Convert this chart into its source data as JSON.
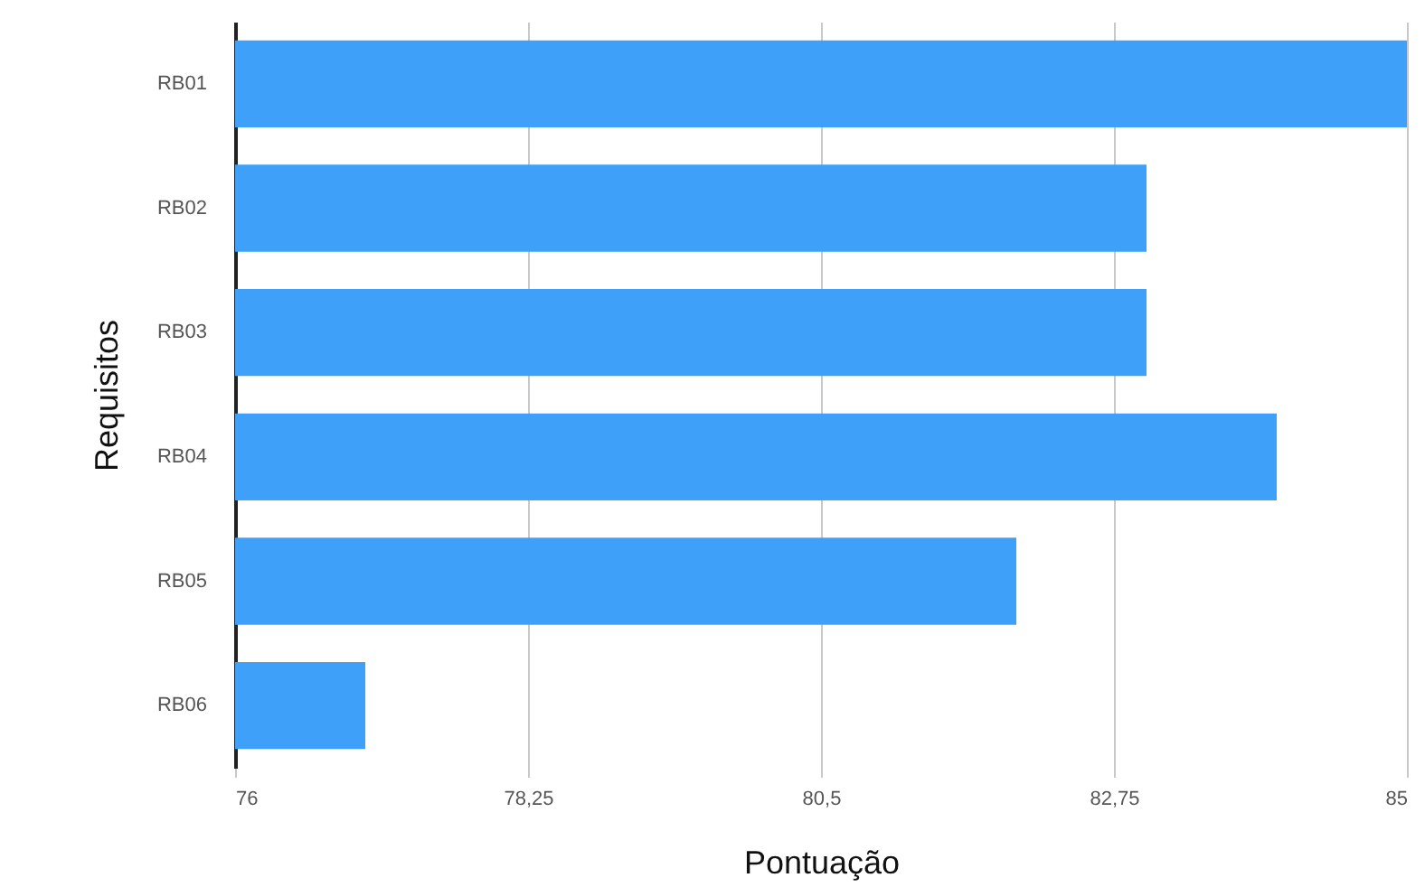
{
  "chart_data": {
    "type": "bar",
    "orientation": "horizontal",
    "xlabel": "Pontuação",
    "ylabel": "Requisitos",
    "categories": [
      "RB01",
      "RB02",
      "RB03",
      "RB04",
      "RB05",
      "RB06"
    ],
    "values": [
      85,
      83,
      83,
      84,
      82,
      77
    ],
    "color": "#3fa0fa",
    "xlim": [
      76,
      85
    ],
    "xticks": [
      76,
      {
        "value": 78.25,
        "label": "78,25"
      },
      {
        "value": 80.5,
        "label": "80,5"
      },
      {
        "value": 82.75,
        "label": "82,75"
      },
      85
    ],
    "grid": "x"
  }
}
